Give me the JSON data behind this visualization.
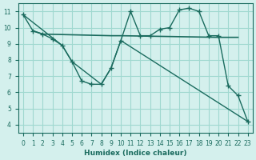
{
  "xlabel": "Humidex (Indice chaleur)",
  "ylabel": "",
  "bg_color": "#d4f0ed",
  "line_color": "#1a6b5e",
  "grid_color": "#a0d8d0",
  "xlim": [
    -0.5,
    23.5
  ],
  "ylim": [
    3.5,
    11.5
  ],
  "x_ticks": [
    0,
    1,
    2,
    3,
    4,
    5,
    6,
    7,
    8,
    9,
    10,
    11,
    12,
    13,
    14,
    15,
    16,
    17,
    18,
    19,
    20,
    21,
    22,
    23
  ],
  "y_ticks": [
    4,
    5,
    6,
    7,
    8,
    9,
    10,
    11
  ],
  "line1_x": [
    0,
    1,
    2,
    3,
    4,
    5,
    6,
    7,
    8,
    9,
    10,
    11,
    12,
    13,
    14,
    15,
    16,
    17,
    18,
    19,
    20,
    21,
    22,
    23
  ],
  "line1_y": [
    10.8,
    9.8,
    9.6,
    9.3,
    8.9,
    7.9,
    6.7,
    6.5,
    6.5,
    7.5,
    9.2,
    11.0,
    9.5,
    9.5,
    9.9,
    10.0,
    11.1,
    11.2,
    11.0,
    9.5,
    9.5,
    6.4,
    5.8,
    4.2
  ],
  "line2_x": [
    1,
    2,
    9,
    10,
    20,
    21,
    22
  ],
  "line2_y": [
    9.8,
    9.6,
    9.5,
    9.5,
    9.4,
    9.4,
    9.4
  ],
  "line3_x": [
    0,
    4,
    5,
    8,
    9,
    10,
    23
  ],
  "line3_y": [
    10.8,
    8.9,
    7.9,
    6.5,
    7.5,
    9.2,
    4.2
  ],
  "font_color": "#1a6b5e"
}
